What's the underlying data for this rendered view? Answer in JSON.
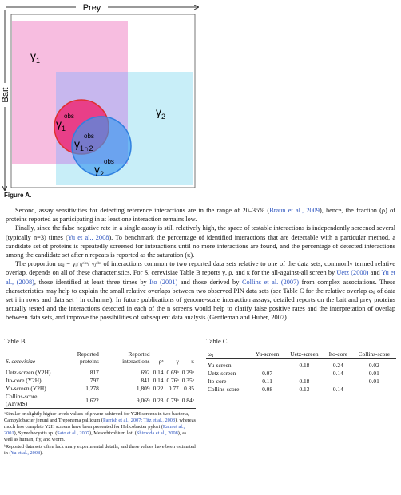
{
  "figure": {
    "prey_label": "Prey",
    "bait_label": "Bait",
    "gamma1": {
      "symbol": "γ",
      "sub": "1"
    },
    "gamma2": {
      "symbol": "γ",
      "sub": "2"
    },
    "gamma1_obs": {
      "symbol": "γ",
      "sub": "1",
      "sup": "obs"
    },
    "gamma2_obs": {
      "symbol": "γ",
      "sub": "2",
      "sup": "obs"
    },
    "gamma12_obs": {
      "symbol": "γ",
      "sub": "1∩2",
      "sup": "obs"
    },
    "caption": "Figure A."
  },
  "paragraphs": [
    [
      "Second, assay sensitivities for detecting reference interactions are in the range of 20–35% (",
      {
        "cite": "Braun et al., 2009"
      },
      "), hence, the fraction (ρ) of proteins reported as participating in at least one interaction remains low."
    ],
    [
      "Finally, since the false negative rate in a single assay is still relatively high, the space of testable interactions is independently screened several (typically n=3) times (",
      {
        "cite": "Yu et al., 2008"
      },
      "). To benchmark the percentage of identified interactions that are detectable with a particular method, a candidate set of proteins is repeatedly screened for interactions until no more interactions are found, and the percentage of detected interactions among the candidate set after n repeats is reported as the saturation (κ)."
    ],
    [
      "The proportion ωᵢⱼ = γᵢ∩ⱼᵒᵇˢ/ γⱼᵒᵇˢ of interactions common to two reported data sets relative to one of the data sets, commonly termed relative overlap, depends on all of these characteristics. For S. cerevisiae Table B reports γ, ρ, and κ for the all-against-all screen by ",
      {
        "cite": "Uetz (2000)"
      },
      " and ",
      {
        "cite": "Yu et al., (2008)"
      },
      ", those identified at least three times by ",
      {
        "cite": "Ito (2001)"
      },
      " and those derived by ",
      {
        "cite": "Collins et al. (2007)"
      },
      " from complex associations. These characteristics may help to explain the small relative overlaps between two observed PIN data sets (see Table C for the relative overlap ωᵢⱼ of data set i in rows and data set j in columns). In future publications of genome-scale interaction assays, detailed reports on the bait and prey proteins actually tested and the interactions detected in each of the n screens would help to clarify false positive rates and the interpretation of overlap between data sets, and improve the possibilities of subsequent data analysis (Gentleman and Huber, 2007)."
    ]
  ],
  "table_b": {
    "title": "Table B",
    "header": [
      "S. cerevisiae",
      "Reported proteins",
      "Reported interactions",
      "ρᵃ",
      "γ",
      "κ"
    ],
    "rows": [
      [
        "Uetz-screen (Y2H)",
        "817",
        "692",
        "0.14",
        "0.69ᵇ",
        "0.29ᵇ"
      ],
      [
        "Ito-core (Y2H)",
        "797",
        "841",
        "0.14",
        "0.76ᵇ",
        "0.35ᵇ"
      ],
      [
        "Yu-screen (Y2H)",
        "1,278",
        "1,809",
        "0.22",
        "0.77",
        "0.85"
      ],
      [
        "Collins-score (AP/MS)",
        "1,622",
        "9,069",
        "0.28",
        "0.79ᵇ",
        "0.84ᵇ"
      ]
    ],
    "notes": [
      [
        "ᵃSimilar or slightly higher levels values of ρ were achieved for Y2H screens in two bacteria, Campylobacter jenuni and Treponema pallidum (",
        {
          "cite": "Parrish et al., 2007; Titz et al., 2008"
        },
        "), whereas much less complete Y2H screens have been presented for Helicobacter pylori (",
        {
          "cite": "Rain et al., 2001"
        },
        "), Synechocystis sp. (",
        {
          "cite": "Sato et al., 2007"
        },
        "), Mesorhizobium loti (",
        {
          "cite": "Shimoda et al., 2008"
        },
        "), as well as human, fly, and worm."
      ],
      [
        "ᵇReported data sets often lack many experimental details, and these values have been estimated in (",
        {
          "cite": "Yu et al., 2008"
        },
        ")."
      ]
    ]
  },
  "table_c": {
    "title": "Table C",
    "header": [
      "ωᵢⱼ",
      "Yu-screen",
      "Uetz-screen",
      "Ito-core",
      "Collins-score"
    ],
    "rows": [
      [
        "Yu-screen",
        "–",
        "0.18",
        "0.24",
        "0.02"
      ],
      [
        "Uetz-screen",
        "0.07",
        "–",
        "0.14",
        "0.01"
      ],
      [
        "Ito-core",
        "0.11",
        "0.18",
        "–",
        "0.01"
      ],
      [
        "Collins-score",
        "0.08",
        "0.13",
        "0.14",
        "–"
      ]
    ]
  }
}
